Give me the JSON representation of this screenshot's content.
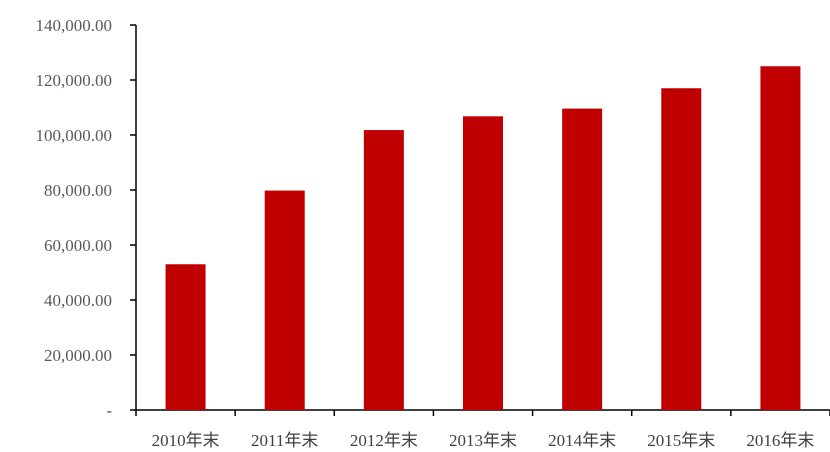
{
  "chart_data": {
    "type": "bar",
    "title": "",
    "xlabel": "",
    "ylabel": "",
    "categories": [
      "2010年末",
      "2011年末",
      "2012年末",
      "2013年末",
      "2014年末",
      "2015年末",
      "2016年末"
    ],
    "values": [
      53000,
      79800,
      101800,
      106800,
      109600,
      117000,
      125000
    ],
    "ylim": [
      0,
      140000
    ],
    "yticks": [
      {
        "value": 0,
        "label": "-"
      },
      {
        "value": 20000,
        "label": "20,000.00"
      },
      {
        "value": 40000,
        "label": "40,000.00"
      },
      {
        "value": 60000,
        "label": "60,000.00"
      },
      {
        "value": 80000,
        "label": "80,000.00"
      },
      {
        "value": 100000,
        "label": "100,000.00"
      },
      {
        "value": 120000,
        "label": "120,000.00"
      },
      {
        "value": 140000,
        "label": "140,000.00"
      }
    ],
    "grid": false,
    "legend": "none",
    "bar_color": "#C00000"
  }
}
